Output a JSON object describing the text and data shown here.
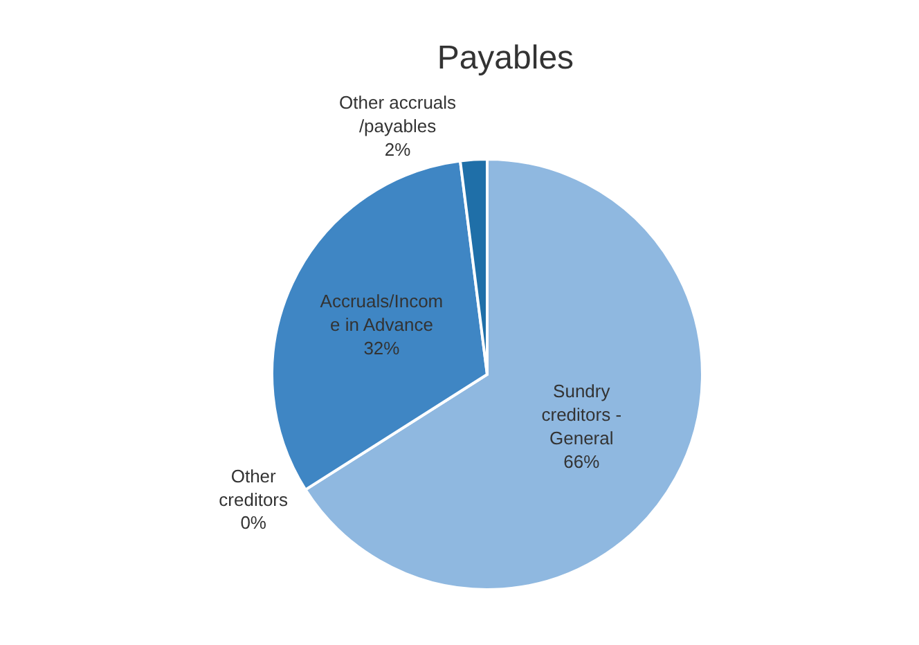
{
  "chart_data": {
    "type": "pie",
    "title": "Payables",
    "categories": [
      "Sundry creditors - General",
      "Other creditors",
      "Accruals/Income in Advance",
      "Other accruals/payables"
    ],
    "values": [
      66,
      0,
      32,
      2
    ],
    "value_labels": [
      "66%",
      "0%",
      "32%",
      "2%"
    ],
    "colors": [
      "#8fb8e0",
      "#6fa3d6",
      "#3f86c4",
      "#1f6fa8"
    ],
    "legend": false
  }
}
